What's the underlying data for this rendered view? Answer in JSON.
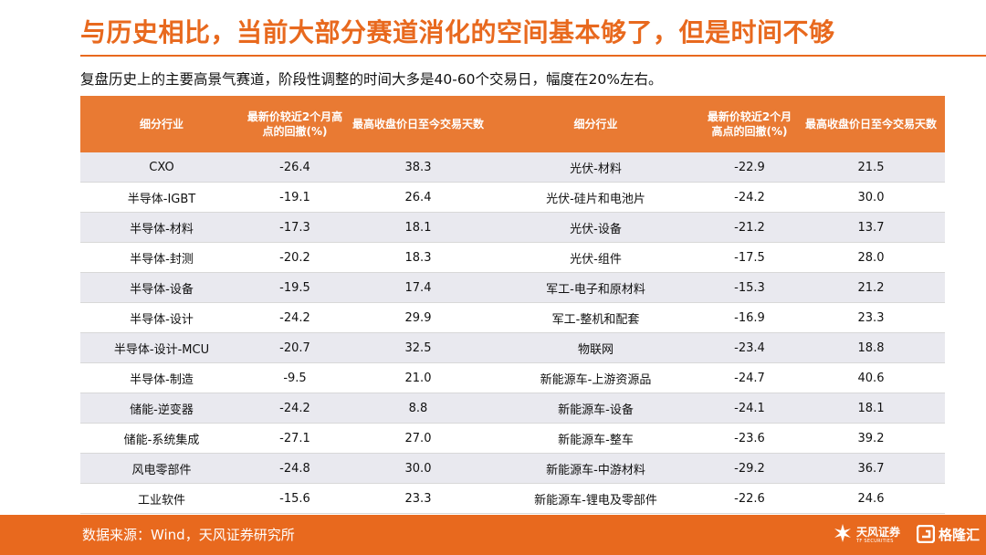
{
  "header": {
    "title": "与历史相比，当前大部分赛道消化的空间基本够了，但是时间不够",
    "subtitle": "复盘历史上的主要高景气赛道，阶段性调整的时间大多是40-60个交易日，幅度在20%左右。"
  },
  "table": {
    "columns": [
      "细分行业",
      "最新价较近2个月高点的回撤(%)",
      "最高收盘价日至今交易天数",
      "细分行业",
      "最新价较近2个月高点的回撤(%)",
      "最高收盘价日至今交易天数"
    ],
    "rows": [
      [
        "CXO",
        "-26.4",
        "38.3",
        "光伏-材料",
        "-22.9",
        "21.5"
      ],
      [
        "半导体-IGBT",
        "-19.1",
        "26.4",
        "光伏-硅片和电池片",
        "-24.2",
        "30.0"
      ],
      [
        "半导体-材料",
        "-17.3",
        "18.1",
        "光伏-设备",
        "-21.2",
        "13.7"
      ],
      [
        "半导体-封测",
        "-20.2",
        "18.3",
        "光伏-组件",
        "-17.5",
        "28.0"
      ],
      [
        "半导体-设备",
        "-19.5",
        "17.4",
        "军工-电子和原材料",
        "-15.3",
        "21.2"
      ],
      [
        "半导体-设计",
        "-24.2",
        "29.9",
        "军工-整机和配套",
        "-16.9",
        "23.3"
      ],
      [
        "半导体-设计-MCU",
        "-20.7",
        "32.5",
        "物联网",
        "-23.4",
        "18.8"
      ],
      [
        "半导体-制造",
        "-9.5",
        "21.0",
        "新能源车-上游资源品",
        "-24.7",
        "40.6"
      ],
      [
        "储能-逆变器",
        "-24.2",
        "8.8",
        "新能源车-设备",
        "-24.1",
        "18.1"
      ],
      [
        "储能-系统集成",
        "-27.1",
        "27.0",
        "新能源车-整车",
        "-23.6",
        "39.2"
      ],
      [
        "风电零部件",
        "-24.8",
        "30.0",
        "新能源车-中游材料",
        "-29.2",
        "36.7"
      ],
      [
        "工业软件",
        "-15.6",
        "23.3",
        "新能源车-锂电及零部件",
        "-22.6",
        "24.6"
      ]
    ]
  },
  "footer": {
    "source": "数据来源：Wind，天风证券研究所",
    "logo_tf_name": "天风证券",
    "logo_tf_en": "TF SECURITIES",
    "logo_glh_name": "格隆汇"
  },
  "colors": {
    "accent": "#e8691e",
    "header_bg": "#e97a33",
    "row_alt": "#e9e9ef"
  }
}
